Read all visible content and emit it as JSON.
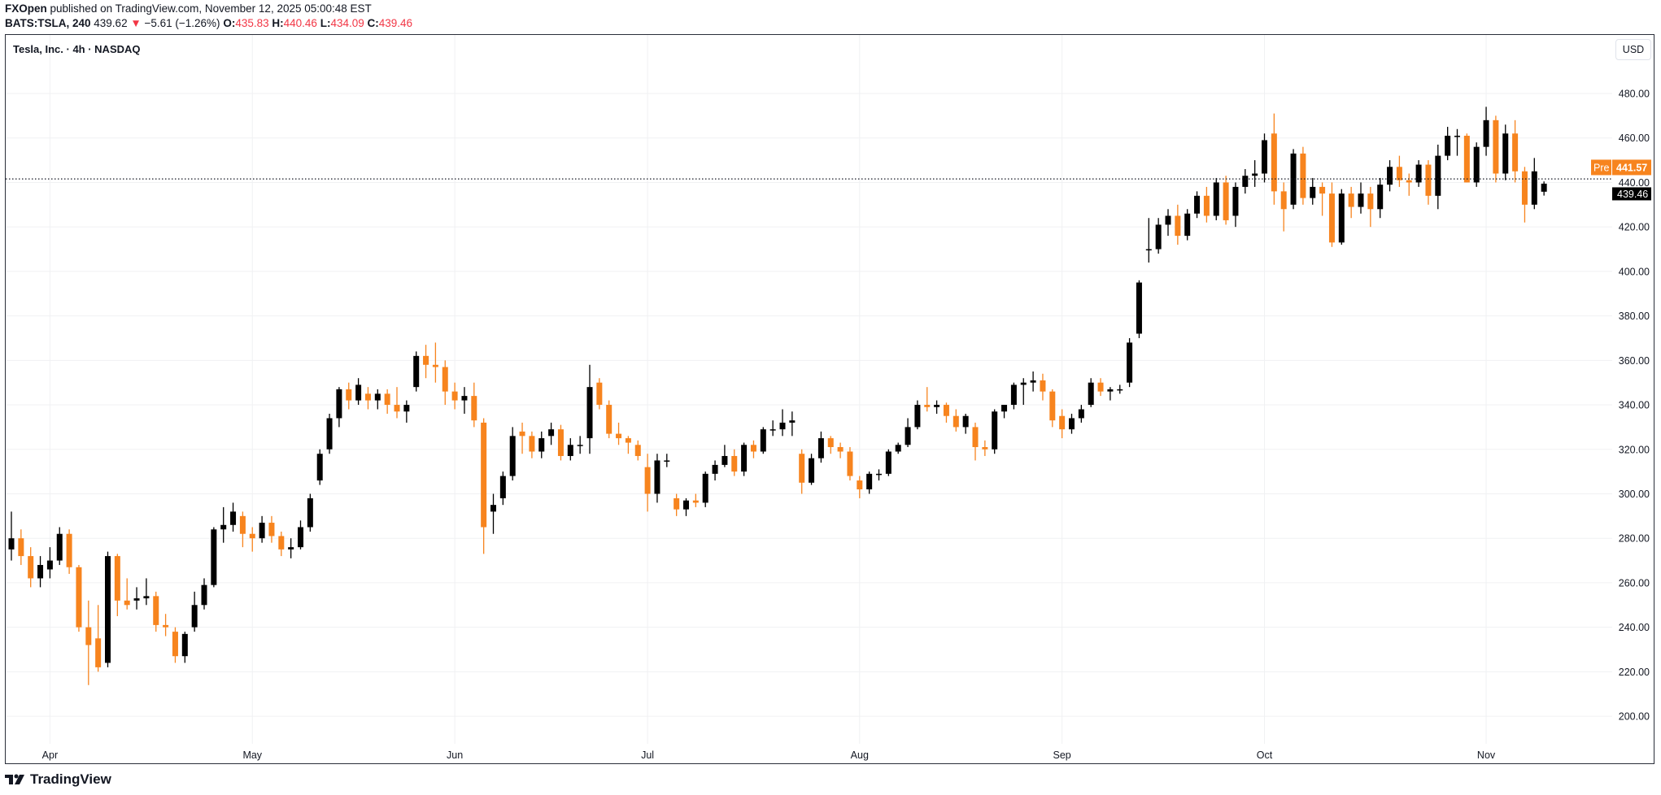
{
  "header": {
    "publisher": "FXOpen",
    "published_text": "published on TradingView.com, November 12, 2025 05:00:48 EST",
    "symbol": "BATS:TSLA, 240",
    "last": "439.62",
    "change": "−5.61 (−1.26%)",
    "o_label": "O:",
    "o": "435.83",
    "h_label": "H:",
    "h": "440.46",
    "l_label": "L:",
    "l": "434.09",
    "c_label": "C:",
    "c": "439.46"
  },
  "legend": "Tesla, Inc. · 4h · NASDAQ",
  "currency_button": "USD",
  "price_line": {
    "tag": "Pre",
    "value": "441.57",
    "under_value": "439.46"
  },
  "footer_logo": "TradingView",
  "colors": {
    "up": "#000000",
    "down": "#f7841e",
    "pre": "#f7841e",
    "grid": "#f0f1f3"
  },
  "chart_data": {
    "type": "candlestick",
    "title": "Tesla, Inc. · 4h · NASDAQ",
    "ylim": [
      190,
      500
    ],
    "y_ticks": [
      "200.00",
      "220.00",
      "240.00",
      "260.00",
      "280.00",
      "300.00",
      "320.00",
      "340.00",
      "360.00",
      "380.00",
      "400.00",
      "420.00",
      "440.00",
      "460.00",
      "480.00"
    ],
    "x_ticks": [
      {
        "label": "Apr",
        "index": 4
      },
      {
        "label": "May",
        "index": 25
      },
      {
        "label": "Jun",
        "index": 46
      },
      {
        "label": "Jul",
        "index": 66
      },
      {
        "label": "Aug",
        "index": 88
      },
      {
        "label": "Sep",
        "index": 109
      },
      {
        "label": "Oct",
        "index": 130
      },
      {
        "label": "Nov",
        "index": 153
      }
    ],
    "candles_ohlc": [
      [
        275,
        292,
        270,
        280
      ],
      [
        280,
        284,
        268,
        272
      ],
      [
        272,
        276,
        258,
        262
      ],
      [
        262,
        272,
        258,
        268
      ],
      [
        266,
        276,
        262,
        270
      ],
      [
        270,
        285,
        268,
        282
      ],
      [
        282,
        284,
        264,
        267
      ],
      [
        267,
        268,
        238,
        240
      ],
      [
        240,
        252,
        214,
        232
      ],
      [
        235,
        250,
        220,
        222
      ],
      [
        224,
        274,
        222,
        272
      ],
      [
        272,
        273,
        245,
        252
      ],
      [
        252,
        262,
        248,
        250
      ],
      [
        252,
        258,
        248,
        253
      ],
      [
        253,
        262,
        250,
        254
      ],
      [
        254,
        256,
        238,
        241
      ],
      [
        241,
        246,
        236,
        240
      ],
      [
        238,
        240,
        224,
        227
      ],
      [
        227,
        238,
        224,
        237
      ],
      [
        240,
        256,
        238,
        250
      ],
      [
        250,
        262,
        248,
        259
      ],
      [
        259,
        285,
        258,
        284
      ],
      [
        284,
        294,
        278,
        286
      ],
      [
        286,
        296,
        283,
        292
      ],
      [
        290,
        292,
        276,
        282
      ],
      [
        282,
        285,
        274,
        280
      ],
      [
        280,
        290,
        278,
        287
      ],
      [
        287,
        290,
        278,
        281
      ],
      [
        281,
        283,
        272,
        275
      ],
      [
        275,
        280,
        271,
        276
      ],
      [
        276,
        288,
        275,
        285
      ],
      [
        285,
        300,
        283,
        298
      ],
      [
        306,
        320,
        304,
        318
      ],
      [
        320,
        336,
        318,
        334
      ],
      [
        334,
        348,
        330,
        347
      ],
      [
        347,
        350,
        338,
        342
      ],
      [
        342,
        352,
        340,
        349
      ],
      [
        345,
        348,
        338,
        342
      ],
      [
        342,
        347,
        338,
        345
      ],
      [
        345,
        347,
        336,
        340
      ],
      [
        340,
        348,
        334,
        337
      ],
      [
        337,
        342,
        332,
        340
      ],
      [
        348,
        364,
        346,
        362
      ],
      [
        362,
        367,
        352,
        358
      ],
      [
        358,
        368,
        350,
        357
      ],
      [
        357,
        360,
        340,
        346
      ],
      [
        346,
        350,
        338,
        342
      ],
      [
        342,
        348,
        336,
        344
      ],
      [
        344,
        350,
        330,
        333
      ],
      [
        332,
        334,
        273,
        285
      ],
      [
        292,
        300,
        282,
        295
      ],
      [
        298,
        310,
        295,
        308
      ],
      [
        308,
        330,
        306,
        326
      ],
      [
        328,
        332,
        318,
        326
      ],
      [
        326,
        328,
        316,
        319
      ],
      [
        319,
        328,
        316,
        325
      ],
      [
        326,
        332,
        322,
        329
      ],
      [
        329,
        331,
        315,
        317
      ],
      [
        317,
        325,
        315,
        322
      ],
      [
        322,
        326,
        318,
        322
      ],
      [
        325,
        358,
        318,
        348
      ],
      [
        350,
        352,
        338,
        340
      ],
      [
        340,
        342,
        325,
        327
      ],
      [
        327,
        332,
        322,
        325
      ],
      [
        325,
        326,
        318,
        323
      ],
      [
        322,
        324,
        315,
        317
      ],
      [
        312,
        318,
        292,
        300
      ],
      [
        300,
        318,
        296,
        315
      ],
      [
        315,
        318,
        312,
        315
      ],
      [
        298,
        300,
        290,
        293
      ],
      [
        293,
        298,
        290,
        297
      ],
      [
        297,
        300,
        294,
        296
      ],
      [
        296,
        310,
        294,
        309
      ],
      [
        309,
        315,
        306,
        313
      ],
      [
        313,
        322,
        312,
        317
      ],
      [
        317,
        320,
        308,
        310
      ],
      [
        310,
        323,
        308,
        322
      ],
      [
        322,
        324,
        316,
        319
      ],
      [
        319,
        330,
        318,
        329
      ],
      [
        329,
        333,
        326,
        329
      ],
      [
        329,
        338,
        326,
        332
      ],
      [
        332,
        337,
        326,
        333
      ],
      [
        318,
        320,
        300,
        305
      ],
      [
        305,
        318,
        304,
        316
      ],
      [
        316,
        328,
        314,
        325
      ],
      [
        325,
        326,
        318,
        321
      ],
      [
        321,
        323,
        316,
        319
      ],
      [
        319,
        321,
        306,
        308
      ],
      [
        306,
        308,
        298,
        302
      ],
      [
        302,
        310,
        300,
        309
      ],
      [
        309,
        311,
        306,
        309
      ],
      [
        309,
        320,
        308,
        319
      ],
      [
        319,
        323,
        318,
        322
      ],
      [
        322,
        334,
        321,
        330
      ],
      [
        330,
        342,
        329,
        340
      ],
      [
        340,
        348,
        337,
        339
      ],
      [
        339,
        342,
        336,
        340
      ],
      [
        340,
        341,
        332,
        335
      ],
      [
        335,
        338,
        328,
        330
      ],
      [
        330,
        336,
        327,
        335
      ],
      [
        330,
        332,
        315,
        321
      ],
      [
        321,
        324,
        317,
        320
      ],
      [
        320,
        338,
        318,
        337
      ],
      [
        337,
        340,
        334,
        340
      ],
      [
        340,
        350,
        338,
        349
      ],
      [
        349,
        352,
        340,
        350
      ],
      [
        350,
        355,
        346,
        351
      ],
      [
        351,
        354,
        342,
        346
      ],
      [
        346,
        347,
        330,
        333
      ],
      [
        335,
        338,
        325,
        329
      ],
      [
        329,
        336,
        327,
        334
      ],
      [
        334,
        340,
        332,
        338
      ],
      [
        340,
        352,
        339,
        350
      ],
      [
        350,
        352,
        344,
        346
      ],
      [
        346,
        348,
        342,
        347
      ],
      [
        347,
        349,
        345,
        347
      ],
      [
        350,
        370,
        348,
        368
      ],
      [
        372,
        396,
        370,
        395
      ],
      [
        410,
        424,
        404,
        410
      ],
      [
        410,
        424,
        408,
        421
      ],
      [
        421,
        428,
        416,
        425
      ],
      [
        425,
        430,
        412,
        416
      ],
      [
        416,
        428,
        414,
        426
      ],
      [
        426,
        436,
        424,
        434
      ],
      [
        434,
        438,
        422,
        425
      ],
      [
        425,
        442,
        423,
        440
      ],
      [
        440,
        443,
        421,
        423
      ],
      [
        425,
        440,
        420,
        438
      ],
      [
        438,
        446,
        435,
        443
      ],
      [
        443,
        450,
        438,
        444
      ],
      [
        444,
        462,
        440,
        459
      ],
      [
        462,
        471,
        430,
        436
      ],
      [
        436,
        440,
        418,
        428
      ],
      [
        430,
        455,
        428,
        453
      ],
      [
        453,
        456,
        430,
        433
      ],
      [
        433,
        442,
        430,
        438
      ],
      [
        438,
        440,
        425,
        435
      ],
      [
        435,
        440,
        411,
        413
      ],
      [
        413,
        437,
        412,
        435
      ],
      [
        435,
        438,
        424,
        429
      ],
      [
        429,
        440,
        426,
        435
      ],
      [
        435,
        438,
        420,
        428
      ],
      [
        428,
        442,
        424,
        439
      ],
      [
        439,
        450,
        436,
        447
      ],
      [
        447,
        452,
        438,
        441
      ],
      [
        441,
        444,
        434,
        440
      ],
      [
        440,
        450,
        438,
        448
      ],
      [
        448,
        450,
        430,
        434
      ],
      [
        434,
        457,
        428,
        452
      ],
      [
        452,
        465,
        450,
        461
      ],
      [
        461,
        464,
        452,
        461
      ],
      [
        461,
        462,
        440,
        440
      ],
      [
        440,
        458,
        438,
        456
      ],
      [
        456,
        474,
        452,
        468
      ],
      [
        468,
        470,
        440,
        444
      ],
      [
        444,
        466,
        441,
        462
      ],
      [
        462,
        468,
        440,
        445
      ],
      [
        445,
        447,
        422,
        430
      ],
      [
        430,
        451,
        428,
        445
      ],
      [
        435.83,
        440.46,
        434.09,
        439.46
      ]
    ],
    "current_price_line": 441.57
  }
}
